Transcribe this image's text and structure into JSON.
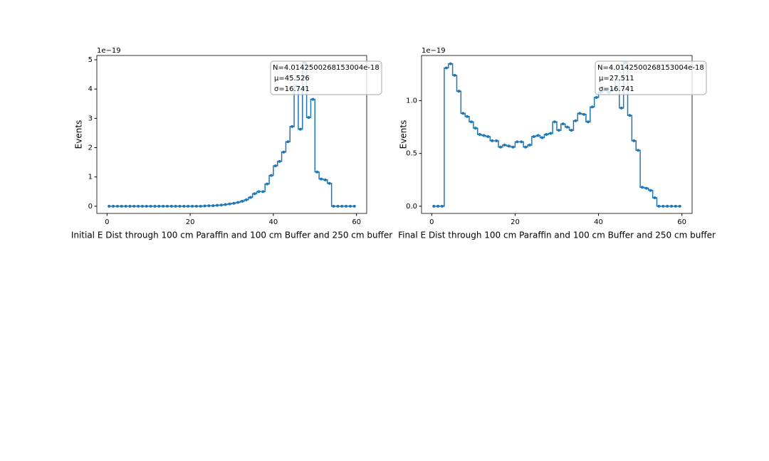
{
  "chart_data": [
    {
      "type": "step",
      "xlabel": "Initial E Dist through 100 cm Paraffin and 100 cm Buffer and 250 cm buffer",
      "ylabel": "Events",
      "offset_text": "1e−19",
      "annotation": [
        "N=4.0142500268153004e-18",
        "μ=45.526",
        "σ=16.741"
      ],
      "x": [
        0.5,
        1.5,
        2.5,
        3.5,
        4.5,
        5.5,
        6.5,
        7.5,
        8.5,
        9.5,
        10.5,
        11.5,
        12.5,
        13.5,
        14.5,
        15.5,
        16.5,
        17.5,
        18.5,
        19.5,
        20.5,
        21.5,
        22.5,
        23.5,
        24.5,
        25.5,
        26.5,
        27.5,
        28.5,
        29.5,
        30.5,
        31.5,
        32.5,
        33.5,
        34.5,
        35.5,
        36.5,
        37.5,
        38.5,
        39.5,
        40.5,
        41.5,
        42.5,
        43.5,
        44.5,
        45.5,
        46.5,
        47.5,
        48.5,
        49.5,
        50.5,
        51.5,
        52.5,
        53.5,
        54.5,
        55.5,
        56.5,
        57.5,
        58.5,
        59.5
      ],
      "series": [
        {
          "color": "#1f77b4",
          "values": [
            0,
            0,
            0,
            0,
            0,
            0,
            0,
            0,
            0,
            0,
            0,
            0,
            0,
            0,
            0,
            0,
            0,
            0,
            0,
            0,
            0,
            0,
            0,
            0.01,
            0.015,
            0.02,
            0.03,
            0.04,
            0.06,
            0.08,
            0.1,
            0.13,
            0.17,
            0.22,
            0.3,
            0.43,
            0.5,
            0.5,
            0.76,
            1.05,
            1.38,
            1.53,
            1.85,
            2.2,
            2.72,
            4.1,
            2.63,
            4.9,
            3.03,
            3.65,
            1.17,
            0.93,
            0.9,
            0.78,
            0,
            0,
            0,
            0,
            0,
            0
          ]
        }
      ],
      "xlim": [
        -2.45,
        62.45
      ],
      "xticks": [
        0,
        20,
        40,
        60
      ],
      "ylim": [
        -0.245,
        5.145
      ],
      "yticks": [
        0,
        1,
        2,
        3,
        4,
        5
      ]
    },
    {
      "type": "step",
      "xlabel": "Final E Dist through 100 cm Paraffin and 100 cm Buffer and 250 cm buffer",
      "ylabel": "Events",
      "offset_text": "1e−19",
      "annotation": [
        "N=4.0142500268153004e-18",
        "μ=27.511",
        "σ=16.741"
      ],
      "x": [
        0.5,
        1.5,
        2.5,
        3.5,
        4.5,
        5.5,
        6.5,
        7.5,
        8.5,
        9.5,
        10.5,
        11.5,
        12.5,
        13.5,
        14.5,
        15.5,
        16.5,
        17.5,
        18.5,
        19.5,
        20.5,
        21.5,
        22.5,
        23.5,
        24.5,
        25.5,
        26.5,
        27.5,
        28.5,
        29.5,
        30.5,
        31.5,
        32.5,
        33.5,
        34.5,
        35.5,
        36.5,
        37.5,
        38.5,
        39.5,
        40.5,
        41.5,
        42.5,
        43.5,
        44.5,
        45.5,
        46.5,
        47.5,
        48.5,
        49.5,
        50.5,
        51.5,
        52.5,
        53.5,
        54.5,
        55.5,
        56.5,
        57.5,
        58.5,
        59.5
      ],
      "series": [
        {
          "color": "#1f77b4",
          "values": [
            0,
            0,
            0,
            1.31,
            1.35,
            1.24,
            1.09,
            0.88,
            0.85,
            0.8,
            0.74,
            0.68,
            0.67,
            0.66,
            0.62,
            0.62,
            0.56,
            0.58,
            0.57,
            0.56,
            0.61,
            0.61,
            0.56,
            0.58,
            0.66,
            0.67,
            0.65,
            0.68,
            0.69,
            0.8,
            0.72,
            0.78,
            0.75,
            0.72,
            0.81,
            0.88,
            0.87,
            0.8,
            0.94,
            1.03,
            1.08,
            1.1,
            1.08,
            1.1,
            1.2,
            0.93,
            1.36,
            0.86,
            0.62,
            0.53,
            0.18,
            0.17,
            0.15,
            0.08,
            0,
            0,
            0,
            0,
            0,
            0
          ]
        }
      ],
      "xlim": [
        -2.45,
        62.45
      ],
      "xticks": [
        0,
        20,
        40,
        60
      ],
      "ylim": [
        -0.068,
        1.428
      ],
      "yticks": [
        {
          "value": 0,
          "label": "0.0"
        },
        {
          "value": 0.5,
          "label": "0.5"
        },
        {
          "value": 1,
          "label": "1.0"
        }
      ]
    }
  ]
}
